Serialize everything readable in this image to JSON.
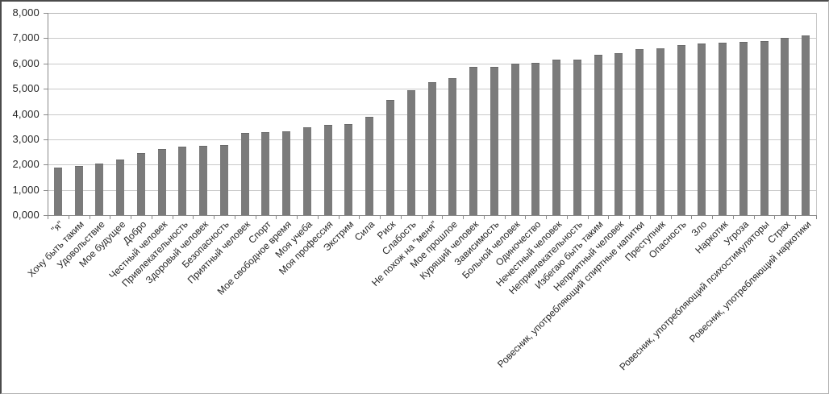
{
  "chart_data": {
    "type": "bar",
    "title": "",
    "xlabel": "",
    "ylabel": "",
    "legend": false,
    "grid": true,
    "ylim": [
      0,
      8
    ],
    "ytick_labels": [
      "0,000",
      "1,000",
      "2,000",
      "3,000",
      "4,000",
      "5,000",
      "6,000",
      "7,000",
      "8,000"
    ],
    "categories": [
      "\"я\"",
      "Хочу быть таким",
      "Удовольствие",
      "Мое будущее",
      "Добро",
      "Честный человек",
      "Привлекательность",
      "Здоровый человек",
      "Безопасность",
      "Приятный человек",
      "Спорт",
      "Мое свободное время",
      "Моя учеба",
      "Моя профессия",
      "Экстрим",
      "Сила",
      "Риск",
      "Слабость",
      "Не похож на \"меня\"",
      "Мое прошлое",
      "Курящий человек",
      "Зависимость",
      "Больной человек",
      "Одиночество",
      "Нечестный человек",
      "Непривлекательность",
      "Избегаю быть таким",
      "Неприятный человек",
      "Ровесник, употребляющий спиртные напитки",
      "Преступник",
      "Опасность",
      "Зло",
      "Наркотик",
      "Угроза",
      "Ровесник, употребляющий психостимуляторы",
      "Страх",
      "Ровесник, употребляющий наркотики"
    ],
    "values": [
      1.87,
      1.95,
      2.04,
      2.21,
      2.45,
      2.6,
      2.71,
      2.74,
      2.78,
      3.24,
      3.29,
      3.32,
      3.47,
      3.56,
      3.6,
      3.88,
      4.55,
      4.93,
      5.27,
      5.41,
      5.87,
      5.88,
      5.98,
      6.03,
      6.14,
      6.16,
      6.35,
      6.4,
      6.55,
      6.6,
      6.74,
      6.8,
      6.83,
      6.84,
      6.88,
      7.02,
      7.1
    ],
    "colors": {
      "bar": "#7b7b7b",
      "bar_top_edge": "#6a6a6a",
      "gridline": "#c9c9c9",
      "top_gridline": "#b5b5b5",
      "axis": "#8a8a8a",
      "text": "#262626",
      "background": "#ffffff"
    }
  }
}
